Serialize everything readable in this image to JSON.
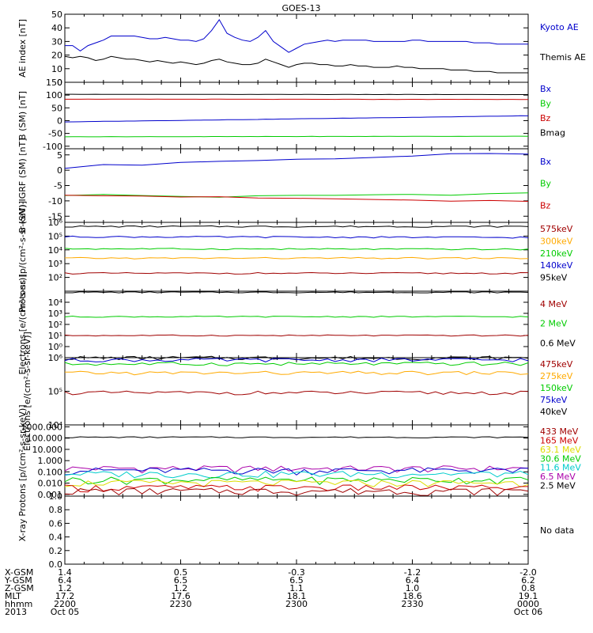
{
  "title": "GOES-13",
  "colors": {
    "black": "#000000",
    "blue": "#0000cc",
    "green": "#00cc00",
    "red": "#cc0000",
    "orange": "#ffaa00",
    "cyan": "#00cccc",
    "yellow": "#dddd00",
    "purple": "#aa00aa",
    "darkred": "#a00000"
  },
  "chart_data": [
    {
      "type": "line",
      "panel": "ae",
      "ylabel": "AE index [nT]",
      "yticks": [
        "0",
        "10",
        "20",
        "30",
        "40",
        "50"
      ],
      "ylim": [
        0,
        50
      ],
      "legend": [
        {
          "label": "Kyoto AE",
          "color": "blue"
        },
        {
          "label": "Themis AE",
          "color": "black"
        }
      ],
      "series": [
        {
          "name": "Kyoto AE",
          "color": "blue",
          "x": [
            0,
            2,
            4,
            6,
            8,
            10,
            12,
            14,
            16,
            18,
            20,
            22,
            24,
            26,
            28,
            30,
            32,
            34,
            36,
            38,
            40,
            42,
            44,
            46,
            48,
            50,
            52,
            54,
            56,
            58,
            60,
            62,
            64,
            66,
            68,
            70,
            72,
            74,
            76,
            78,
            80,
            82,
            84,
            86,
            88,
            90,
            92,
            94,
            96,
            98,
            100,
            102,
            104,
            106,
            108,
            110,
            112,
            114,
            116,
            118,
            120
          ],
          "y": [
            27,
            27,
            23,
            27,
            29,
            31,
            34,
            34,
            34,
            34,
            33,
            32,
            32,
            33,
            32,
            31,
            31,
            30,
            32,
            38,
            46,
            36,
            33,
            31,
            30,
            33,
            38,
            30,
            26,
            22,
            25,
            28,
            29,
            30,
            31,
            30,
            31,
            31,
            31,
            31,
            30,
            30,
            30,
            30,
            30,
            31,
            31,
            30,
            30,
            30,
            30,
            30,
            30,
            29,
            29,
            29,
            28,
            28,
            28,
            28,
            28
          ]
        },
        {
          "name": "Themis AE",
          "color": "black",
          "x": [
            0,
            2,
            4,
            6,
            8,
            10,
            12,
            14,
            16,
            18,
            20,
            22,
            24,
            26,
            28,
            30,
            32,
            34,
            36,
            38,
            40,
            42,
            44,
            46,
            48,
            50,
            52,
            54,
            56,
            58,
            60,
            62,
            64,
            66,
            68,
            70,
            72,
            74,
            76,
            78,
            80,
            82,
            84,
            86,
            88,
            90,
            92,
            94,
            96,
            98,
            100,
            102,
            104,
            106,
            108,
            110,
            112,
            114,
            116,
            118,
            120
          ],
          "y": [
            19,
            18,
            19,
            18,
            16,
            17,
            19,
            18,
            17,
            17,
            16,
            15,
            16,
            15,
            14,
            15,
            14,
            13,
            14,
            16,
            17,
            15,
            14,
            13,
            13,
            14,
            17,
            15,
            13,
            11,
            13,
            14,
            14,
            13,
            13,
            12,
            12,
            13,
            12,
            12,
            11,
            11,
            11,
            12,
            11,
            11,
            10,
            10,
            10,
            10,
            9,
            9,
            9,
            8,
            8,
            8,
            7,
            7,
            7,
            7,
            7
          ]
        }
      ]
    },
    {
      "type": "line",
      "panel": "bsm",
      "ylabel": "B (SM) [nT]",
      "yticks": [
        "-100",
        "-50",
        "0",
        "50",
        "100",
        "150"
      ],
      "ylim": [
        -110,
        150
      ],
      "legend": [
        {
          "label": "Bx",
          "color": "blue"
        },
        {
          "label": "By",
          "color": "green"
        },
        {
          "label": "Bz",
          "color": "red"
        },
        {
          "label": "Bmag",
          "color": "black"
        }
      ],
      "series": [
        {
          "name": "Bx",
          "color": "blue",
          "x": [
            0,
            120
          ],
          "y": [
            -5,
            19
          ]
        },
        {
          "name": "By",
          "color": "green",
          "x": [
            0,
            120
          ],
          "y": [
            -63,
            -61
          ]
        },
        {
          "name": "Bz",
          "color": "red",
          "x": [
            0,
            120
          ],
          "y": [
            84,
            83
          ]
        },
        {
          "name": "Bmag",
          "color": "black",
          "x": [
            0,
            120
          ],
          "y": [
            103,
            102
          ]
        }
      ]
    },
    {
      "type": "line",
      "panel": "bigrf",
      "ylabel": "B (SM)-IGRF (SM) [nT]",
      "yticks": [
        "-15",
        "-10",
        "-5",
        "0",
        "5"
      ],
      "ylim": [
        -17,
        7
      ],
      "legend": [
        {
          "label": "Bx",
          "color": "blue"
        },
        {
          "label": "By",
          "color": "green"
        },
        {
          "label": "Bz",
          "color": "red"
        }
      ],
      "series": [
        {
          "name": "Bx",
          "color": "blue",
          "x": [
            0,
            10,
            20,
            30,
            40,
            50,
            60,
            70,
            80,
            90,
            100,
            110,
            120
          ],
          "y": [
            1,
            1.5,
            2,
            2.5,
            3,
            3.2,
            3.5,
            4,
            4.3,
            4.6,
            5,
            5.2,
            5.5
          ]
        },
        {
          "name": "By",
          "color": "green",
          "x": [
            0,
            10,
            20,
            30,
            40,
            50,
            60,
            70,
            80,
            90,
            100,
            110,
            120
          ],
          "y": [
            -8,
            -8.1,
            -8.3,
            -8.5,
            -8.6,
            -8.6,
            -8.4,
            -8.2,
            -8,
            -7.9,
            -7.8,
            -7.7,
            -7.5
          ]
        },
        {
          "name": "Bz",
          "color": "red",
          "x": [
            0,
            10,
            20,
            30,
            40,
            50,
            60,
            70,
            80,
            90,
            100,
            110,
            120
          ],
          "y": [
            -7.8,
            -8,
            -8.3,
            -8.6,
            -9,
            -9.1,
            -9.2,
            -9.4,
            -9.6,
            -9.8,
            -10,
            -10.2,
            -10.4
          ]
        }
      ]
    },
    {
      "type": "line",
      "panel": "protons1",
      "ylabel": "Protons [p/(cm²-s-sr-keV)]",
      "log": true,
      "ylim": [
        10.0,
        1000000.0
      ],
      "yticks": [
        "10²",
        "10³",
        "10⁴",
        "10⁵",
        "10⁶"
      ],
      "legend": [
        {
          "label": "575keV",
          "color": "darkred"
        },
        {
          "label": "300keV",
          "color": "orange"
        },
        {
          "label": "210keV",
          "color": "green"
        },
        {
          "label": "140keV",
          "color": "blue"
        },
        {
          "label": "95keV",
          "color": "black"
        }
      ],
      "series": [
        {
          "name": "95keV",
          "color": "black",
          "x": [
            0,
            120
          ],
          "y": [
            500000,
            500000
          ]
        },
        {
          "name": "140keV",
          "color": "blue",
          "x": [
            0,
            120
          ],
          "y": [
            90000,
            80000
          ]
        },
        {
          "name": "210keV",
          "color": "green",
          "x": [
            0,
            120
          ],
          "y": [
            12000,
            11000
          ]
        },
        {
          "name": "300keV",
          "color": "orange",
          "x": [
            0,
            120
          ],
          "y": [
            2500,
            2500
          ]
        },
        {
          "name": "575keV",
          "color": "darkred",
          "x": [
            0,
            120
          ],
          "y": [
            200,
            200
          ]
        }
      ]
    },
    {
      "type": "line",
      "panel": "electrons1",
      "ylabel": "Electrons [e/(cm²-s-sr)]",
      "log": true,
      "ylim": [
        0.1,
        100000.0
      ],
      "yticks": [
        "10⁰",
        "10¹",
        "10²",
        "10³",
        "10⁴"
      ],
      "legend": [
        {
          "label": "4 MeV",
          "color": "darkred"
        },
        {
          "label": "2 MeV",
          "color": "green"
        },
        {
          "label": "0.6 MeV",
          "color": "black"
        }
      ],
      "series": [
        {
          "name": "0.6 MeV",
          "color": "black",
          "x": [
            0,
            120
          ],
          "y": [
            80000,
            80000
          ]
        },
        {
          "name": "2 MeV",
          "color": "green",
          "x": [
            0,
            120
          ],
          "y": [
            500,
            500
          ]
        },
        {
          "name": "4 MeV",
          "color": "darkred",
          "x": [
            0,
            120
          ],
          "y": [
            10,
            10
          ]
        }
      ]
    },
    {
      "type": "line",
      "panel": "electrons2",
      "ylabel": "Electrons [e/(cm²-s-sr-keV)]",
      "log": true,
      "ylim": [
        10000.0,
        1000000.0
      ],
      "yticks": [
        "10⁴",
        "10⁵",
        "10⁶"
      ],
      "legend": [
        {
          "label": "475keV",
          "color": "darkred"
        },
        {
          "label": "275keV",
          "color": "orange"
        },
        {
          "label": "150keV",
          "color": "green"
        },
        {
          "label": "75keV",
          "color": "blue"
        },
        {
          "label": "40keV",
          "color": "black"
        }
      ],
      "series": [
        {
          "name": "40keV",
          "color": "black",
          "x": [
            0,
            120
          ],
          "y": [
            980000,
            980000
          ]
        },
        {
          "name": "75keV",
          "color": "blue",
          "x": [
            0,
            120
          ],
          "y": [
            850000,
            860000
          ]
        },
        {
          "name": "150keV",
          "color": "green",
          "x": [
            0,
            120
          ],
          "y": [
            650000,
            660000
          ]
        },
        {
          "name": "275keV",
          "color": "orange",
          "x": [
            0,
            120
          ],
          "y": [
            350000,
            350000
          ]
        },
        {
          "name": "475keV",
          "color": "darkred",
          "x": [
            0,
            120
          ],
          "y": [
            90000,
            90000
          ]
        }
      ]
    },
    {
      "type": "line",
      "panel": "protons2",
      "ylabel": "Protons [p/(cm²-s-sr-keV)]",
      "log": true,
      "ylim": [
        0.0007,
        1500
      ],
      "yticks": [
        "0.001",
        "0.010",
        "0.100",
        "1.000",
        "10.000",
        "100.000",
        "1000.000"
      ],
      "legend": [
        {
          "label": "433 MeV",
          "color": "darkred"
        },
        {
          "label": "165 MeV",
          "color": "red"
        },
        {
          "label": "63.1 MeV",
          "color": "yellow"
        },
        {
          "label": "30.6 MeV",
          "color": "green"
        },
        {
          "label": "11.6 MeV",
          "color": "cyan"
        },
        {
          "label": "6.5 MeV",
          "color": "purple"
        },
        {
          "label": "2.5 MeV",
          "color": "black"
        }
      ],
      "series": [
        {
          "name": "2.5 MeV",
          "color": "black",
          "x": [
            0,
            120
          ],
          "y": [
            120,
            120
          ]
        },
        {
          "name": "6.5 MeV",
          "color": "purple",
          "base": 0.15
        },
        {
          "name": "11.6 MeV",
          "color": "blue",
          "base": 0.1
        },
        {
          "name": "11.6 MeV",
          "color": "cyan",
          "base": 0.05
        },
        {
          "name": "30.6 MeV",
          "color": "green",
          "base": 0.015
        },
        {
          "name": "63.1 MeV",
          "color": "yellow",
          "base": 0.008
        },
        {
          "name": "165 MeV",
          "color": "red",
          "base": 0.003
        },
        {
          "name": "433 MeV",
          "color": "darkred",
          "base": 0.0015
        }
      ]
    },
    {
      "type": "line",
      "panel": "xray",
      "ylabel": "X-ray",
      "yticks": [
        "0.0",
        "0.2",
        "0.4",
        "0.6",
        "0.8",
        "1.0"
      ],
      "ylim": [
        0,
        1
      ],
      "nodata": "No data"
    }
  ],
  "axis": {
    "labels": [
      "X-GSM",
      "Y-GSM",
      "Z-GSM",
      "MLT",
      "hhmm",
      "2013"
    ],
    "columns": [
      [
        "1.4",
        "6.4",
        "1.2",
        "17.2",
        "2200",
        "Oct 05"
      ],
      [
        "0.5",
        "6.5",
        "1.2",
        "17.6",
        "2230",
        ""
      ],
      [
        "-0.3",
        "6.5",
        "1.1",
        "18.1",
        "2300",
        ""
      ],
      [
        "-1.2",
        "6.4",
        "1.0",
        "18.6",
        "2330",
        ""
      ],
      [
        "-2.0",
        "6.2",
        "0.8",
        "19.1",
        "0000",
        "Oct 06"
      ]
    ]
  }
}
